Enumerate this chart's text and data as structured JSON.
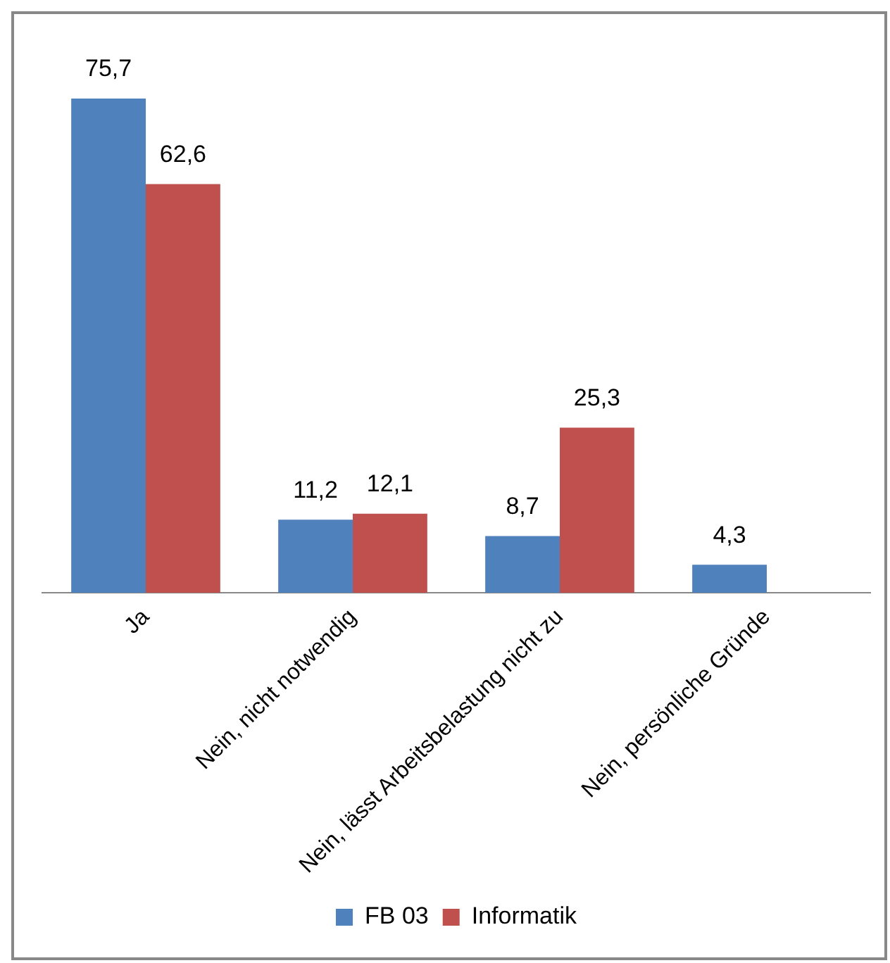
{
  "chart_data": {
    "type": "bar",
    "categories": [
      "Ja",
      "Nein, nicht notwendig",
      "Nein, lässt Arbeitsbelastung nicht zu",
      "Nein, persönliche Gründe"
    ],
    "series": [
      {
        "name": "FB 03",
        "color": "#4f81bd",
        "values": [
          75.7,
          11.2,
          8.7,
          4.3
        ],
        "value_labels": [
          "75,7",
          "11,2",
          "8,7",
          "4,3"
        ]
      },
      {
        "name": "Informatik",
        "color": "#c0504d",
        "values": [
          62.6,
          12.1,
          25.3,
          null
        ],
        "value_labels": [
          "62,6",
          "12,1",
          "25,3",
          null
        ]
      }
    ],
    "grid": false,
    "legend": "bottom"
  }
}
